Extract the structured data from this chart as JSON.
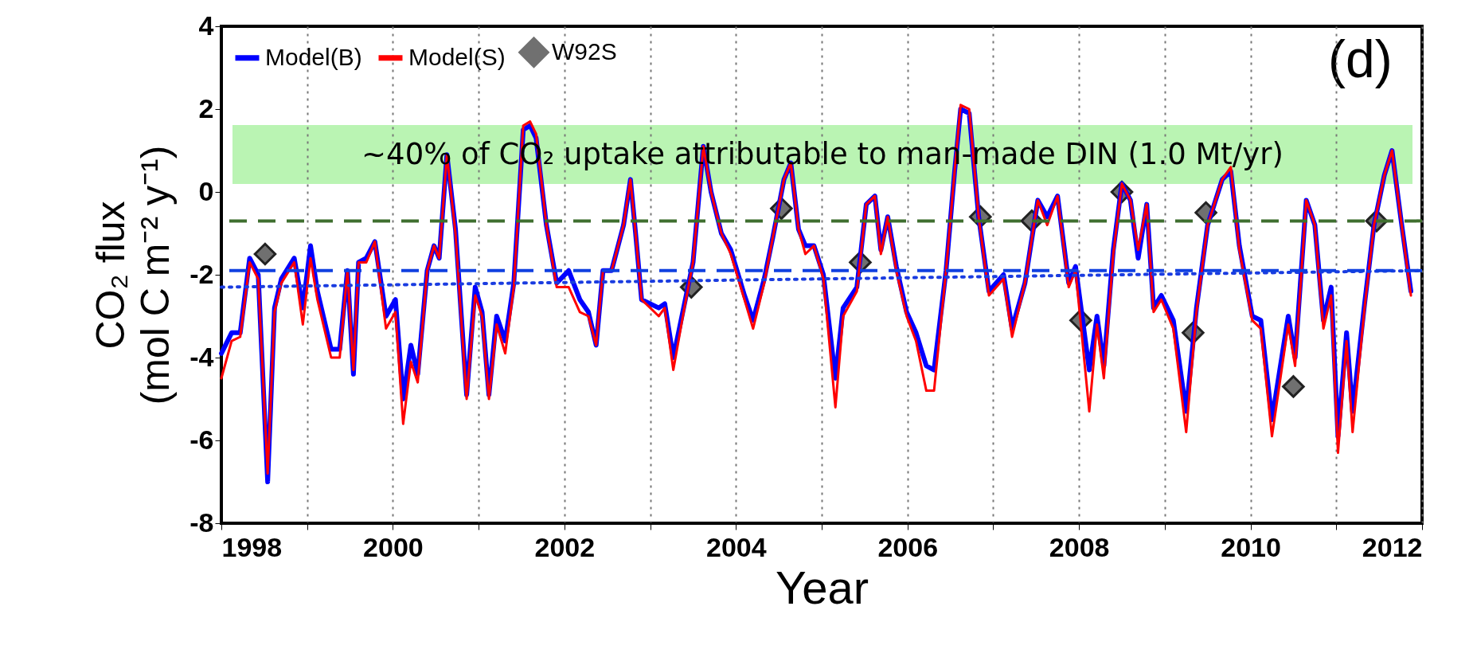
{
  "chart_data": {
    "type": "line",
    "xlabel": "Year",
    "ylabel": "CO₂ flux\n(mol C m⁻² y⁻¹)",
    "annotations": [
      "(d)",
      "~40% of CO₂ uptake attributable to man-made DIN (1.0 Mt/yr)"
    ],
    "x": [
      1998.0,
      1998.12,
      1998.22,
      1998.33,
      1998.43,
      1998.54,
      1998.62,
      1998.7,
      1998.85,
      1998.95,
      1999.04,
      1999.12,
      1999.28,
      1999.38,
      1999.47,
      1999.54,
      1999.6,
      1999.69,
      1999.79,
      1999.92,
      2000.03,
      2000.12,
      2000.21,
      2000.29,
      2000.4,
      2000.48,
      2000.54,
      2000.63,
      2000.73,
      2000.86,
      2000.96,
      2001.04,
      2001.12,
      2001.21,
      2001.31,
      2001.41,
      2001.52,
      2001.6,
      2001.67,
      2001.79,
      2001.91,
      2002.05,
      2002.18,
      2002.28,
      2002.37,
      2002.45,
      2002.55,
      2002.69,
      2002.77,
      2002.83,
      2002.9,
      2003.1,
      2003.17,
      2003.27,
      2003.39,
      2003.5,
      2003.62,
      2003.71,
      2003.83,
      2003.94,
      2004.1,
      2004.2,
      2004.33,
      2004.43,
      2004.56,
      2004.64,
      2004.73,
      2004.81,
      2004.91,
      2005.02,
      2005.16,
      2005.25,
      2005.41,
      2005.52,
      2005.62,
      2005.69,
      2005.77,
      2005.87,
      2005.99,
      2006.1,
      2006.22,
      2006.31,
      2006.45,
      2006.55,
      2006.62,
      2006.72,
      2006.83,
      2006.95,
      2007.12,
      2007.22,
      2007.37,
      2007.52,
      2007.63,
      2007.75,
      2007.88,
      2007.96,
      2008.12,
      2008.21,
      2008.29,
      2008.4,
      2008.5,
      2008.6,
      2008.69,
      2008.79,
      2008.87,
      2008.96,
      2009.1,
      2009.25,
      2009.37,
      2009.5,
      2009.67,
      2009.77,
      2009.87,
      2010.02,
      2010.12,
      2010.25,
      2010.44,
      2010.52,
      2010.65,
      2010.75,
      2010.85,
      2010.94,
      2011.02,
      2011.12,
      2011.19,
      2011.33,
      2011.44,
      2011.56,
      2011.65,
      2011.75,
      2011.87
    ],
    "series": [
      {
        "name": "Model(B)",
        "color": "#0000ff",
        "values": [
          -3.9,
          -3.4,
          -3.4,
          -1.6,
          -2.0,
          -7.0,
          -2.8,
          -2.1,
          -1.6,
          -2.8,
          -1.3,
          -2.4,
          -3.8,
          -3.8,
          -1.9,
          -4.4,
          -1.7,
          -1.6,
          -1.2,
          -3.0,
          -2.6,
          -5.0,
          -3.7,
          -4.4,
          -1.9,
          -1.3,
          -1.6,
          0.9,
          -0.9,
          -4.9,
          -2.3,
          -2.9,
          -4.9,
          -3.0,
          -3.6,
          -2.2,
          1.5,
          1.6,
          1.3,
          -0.8,
          -2.2,
          -1.9,
          -2.6,
          -2.9,
          -3.7,
          -1.9,
          -1.9,
          -0.8,
          0.3,
          -1.0,
          -2.6,
          -2.8,
          -2.7,
          -4.0,
          -2.8,
          -1.7,
          1.1,
          0.0,
          -1.0,
          -1.4,
          -2.5,
          -3.1,
          -2.1,
          -1.1,
          0.3,
          0.7,
          -0.9,
          -1.3,
          -1.3,
          -2.0,
          -4.5,
          -2.8,
          -2.3,
          -0.3,
          -0.1,
          -1.4,
          -0.6,
          -1.8,
          -2.9,
          -3.4,
          -4.2,
          -4.3,
          -1.9,
          0.5,
          2.0,
          1.9,
          -0.6,
          -2.4,
          -2.0,
          -3.3,
          -2.2,
          -0.2,
          -0.6,
          -0.1,
          -2.2,
          -1.8,
          -4.3,
          -3.0,
          -4.2,
          -1.4,
          0.2,
          -0.2,
          -1.6,
          -0.3,
          -2.8,
          -2.5,
          -3.1,
          -5.3,
          -2.8,
          -0.8,
          0.3,
          0.5,
          -1.3,
          -3.0,
          -3.1,
          -5.5,
          -3.0,
          -4.0,
          -0.2,
          -0.8,
          -3.1,
          -2.3,
          -5.9,
          -3.4,
          -5.3,
          -2.7,
          -0.8,
          0.4,
          1.0,
          -0.6,
          -2.4
        ]
      },
      {
        "name": "Model(S)",
        "color": "#ff0000",
        "values": [
          -4.5,
          -3.6,
          -3.5,
          -1.7,
          -2.1,
          -6.8,
          -2.9,
          -2.2,
          -1.7,
          -3.2,
          -1.6,
          -2.6,
          -4.0,
          -4.0,
          -1.9,
          -4.3,
          -1.7,
          -1.7,
          -1.2,
          -3.3,
          -2.9,
          -5.6,
          -4.1,
          -4.6,
          -1.9,
          -1.3,
          -1.6,
          0.9,
          -1.0,
          -5.0,
          -2.5,
          -3.0,
          -5.0,
          -3.2,
          -3.9,
          -2.3,
          1.6,
          1.7,
          1.4,
          -0.8,
          -2.3,
          -2.3,
          -2.9,
          -3.0,
          -3.7,
          -1.9,
          -1.9,
          -0.8,
          0.3,
          -1.0,
          -2.6,
          -3.0,
          -2.8,
          -4.3,
          -2.9,
          -1.7,
          1.1,
          0.0,
          -1.0,
          -1.5,
          -2.6,
          -3.3,
          -2.2,
          -1.1,
          0.3,
          0.7,
          -0.9,
          -1.5,
          -1.3,
          -2.1,
          -5.2,
          -3.0,
          -2.4,
          -0.3,
          -0.1,
          -1.5,
          -0.6,
          -1.9,
          -3.0,
          -3.6,
          -4.8,
          -4.8,
          -1.9,
          0.5,
          2.1,
          2.0,
          -0.6,
          -2.5,
          -2.1,
          -3.5,
          -2.2,
          -0.2,
          -0.8,
          -0.1,
          -2.3,
          -1.9,
          -5.3,
          -3.2,
          -4.5,
          -1.5,
          0.2,
          -0.2,
          -1.4,
          -0.3,
          -2.9,
          -2.6,
          -3.3,
          -5.8,
          -2.9,
          -0.8,
          0.3,
          0.6,
          -1.4,
          -3.1,
          -3.3,
          -5.9,
          -3.2,
          -4.2,
          -0.2,
          -0.8,
          -3.3,
          -2.5,
          -6.3,
          -3.6,
          -5.8,
          -2.8,
          -0.8,
          0.4,
          1.0,
          -0.6,
          -2.5
        ]
      },
      {
        "name": "W92S",
        "type": "scatter",
        "marker": "diamond",
        "color": "#707070",
        "x": [
          1998.51,
          2003.48,
          2004.53,
          2005.45,
          2006.85,
          2007.45,
          2008.02,
          2008.5,
          2009.33,
          2009.48,
          2010.5,
          2011.47
        ],
        "values": [
          -1.5,
          -2.3,
          -0.4,
          -1.7,
          -0.6,
          -0.7,
          -3.1,
          0.0,
          -3.4,
          -0.5,
          -4.7,
          -0.7
        ]
      },
      {
        "type": "line",
        "line_style": "dotted",
        "color": "#1a3ce0",
        "x": [
          1998,
          2012
        ],
        "values": [
          -2.3,
          -1.9
        ]
      }
    ],
    "ref_lines": [
      {
        "axis": "y",
        "value": -0.7,
        "color": "#3f6f2f",
        "line_style": "dashed"
      },
      {
        "axis": "y",
        "value": -1.9,
        "color": "#1040e0",
        "line_style": "dashed"
      }
    ],
    "xlim": [
      1998,
      2012
    ],
    "ylim": [
      -8,
      4
    ],
    "xticks": [
      1998,
      {
        "value": 1999,
        "label": null
      },
      2000,
      {
        "value": 2001,
        "label": null
      },
      2002,
      {
        "value": 2003,
        "label": null
      },
      2004,
      {
        "value": 2005,
        "label": null
      },
      2006,
      {
        "value": 2007,
        "label": null
      },
      2008,
      {
        "value": 2009,
        "label": null
      },
      2010,
      {
        "value": 2011,
        "label": null
      },
      2012
    ],
    "yticks": [
      -8,
      -6,
      -4,
      -2,
      0,
      2,
      4
    ],
    "grid": "x",
    "legend": "top left"
  }
}
